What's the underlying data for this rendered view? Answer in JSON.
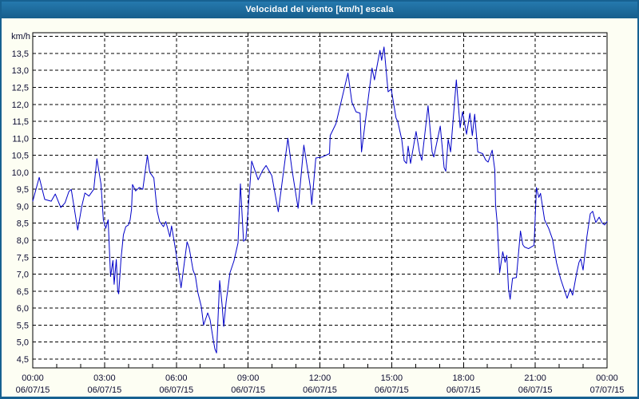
{
  "window": {
    "title": "Velocidad del viento [km/h] escala"
  },
  "colors": {
    "titlebar_top": "#2579ae",
    "titlebar_bottom": "#175e8c",
    "frame_border": "#176191",
    "panel_bg": "#fdfef3",
    "plot_bg": "#ffffff",
    "grid": "#000000",
    "line": "#0000c8",
    "label_text": "#0c0c30",
    "title_text": "#ffffff"
  },
  "chart_data": {
    "type": "line",
    "title": "Velocidad del viento [km/h] escala",
    "xlabel": "",
    "ylabel": "km/h",
    "legend": "none",
    "grid": "dashed",
    "ylim": [
      4.24,
      14.11
    ],
    "grid_step": 0.5,
    "xlim_hours": [
      0,
      24
    ],
    "minor_tick_every_hours": 1,
    "y_ticks": [
      "13,5",
      "13,0",
      "12,5",
      "12,0",
      "11,5",
      "11,0",
      "10,5",
      "10,0",
      "9,5",
      "9,0",
      "8,5",
      "8,0",
      "7,5",
      "7,0",
      "6,5",
      "6,0",
      "5,5",
      "5,0",
      "4,5"
    ],
    "x_ticks": [
      {
        "hour": 0,
        "time": "00:00",
        "date": "06/07/15"
      },
      {
        "hour": 3,
        "time": "03:00",
        "date": "06/07/15"
      },
      {
        "hour": 6,
        "time": "06:00",
        "date": "06/07/15"
      },
      {
        "hour": 9,
        "time": "09:00",
        "date": "06/07/15"
      },
      {
        "hour": 12,
        "time": "12:00",
        "date": "06/07/15"
      },
      {
        "hour": 15,
        "time": "15:00",
        "date": "06/07/15"
      },
      {
        "hour": 18,
        "time": "18:00",
        "date": "06/07/15"
      },
      {
        "hour": 21,
        "time": "21:00",
        "date": "06/07/15"
      },
      {
        "hour": 24,
        "time": "00:00",
        "date": "07/07/15"
      }
    ],
    "series": [
      {
        "name": "Velocidad del viento",
        "unit": "km/h",
        "points": [
          [
            0,
            9.15
          ],
          [
            0.27,
            9.85
          ],
          [
            0.5,
            9.2
          ],
          [
            0.77,
            9.15
          ],
          [
            0.94,
            9.36
          ],
          [
            1.17,
            8.96
          ],
          [
            1.35,
            9.1
          ],
          [
            1.51,
            9.43
          ],
          [
            1.61,
            9.5
          ],
          [
            1.88,
            8.3
          ],
          [
            2.05,
            9.0
          ],
          [
            2.18,
            9.39
          ],
          [
            2.35,
            9.3
          ],
          [
            2.55,
            9.5
          ],
          [
            2.68,
            10.4
          ],
          [
            2.85,
            9.66
          ],
          [
            2.95,
            8.6
          ],
          [
            3.05,
            8.35
          ],
          [
            3.15,
            8.6
          ],
          [
            3.25,
            6.93
          ],
          [
            3.35,
            7.4
          ],
          [
            3.4,
            6.7
          ],
          [
            3.49,
            7.43
          ],
          [
            3.55,
            6.5
          ],
          [
            3.59,
            6.42
          ],
          [
            3.69,
            7.45
          ],
          [
            3.79,
            8.16
          ],
          [
            3.89,
            8.4
          ],
          [
            4.0,
            8.45
          ],
          [
            4.07,
            8.6
          ],
          [
            4.13,
            8.92
          ],
          [
            4.17,
            9.64
          ],
          [
            4.3,
            9.45
          ],
          [
            4.45,
            9.55
          ],
          [
            4.6,
            9.5
          ],
          [
            4.79,
            10.5
          ],
          [
            4.89,
            10.0
          ],
          [
            5.06,
            9.83
          ],
          [
            5.2,
            8.85
          ],
          [
            5.3,
            8.55
          ],
          [
            5.46,
            8.4
          ],
          [
            5.56,
            8.55
          ],
          [
            5.73,
            8.1
          ],
          [
            5.8,
            8.42
          ],
          [
            5.97,
            7.7
          ],
          [
            6.2,
            6.6
          ],
          [
            6.45,
            7.95
          ],
          [
            6.54,
            7.77
          ],
          [
            6.7,
            7.12
          ],
          [
            6.8,
            6.93
          ],
          [
            6.9,
            6.46
          ],
          [
            7.04,
            6.06
          ],
          [
            7.14,
            5.5
          ],
          [
            7.31,
            5.86
          ],
          [
            7.41,
            5.66
          ],
          [
            7.54,
            5.08
          ],
          [
            7.61,
            4.8
          ],
          [
            7.68,
            4.68
          ],
          [
            7.81,
            6.81
          ],
          [
            7.91,
            6.11
          ],
          [
            7.98,
            5.46
          ],
          [
            8.08,
            6.18
          ],
          [
            8.24,
            7.04
          ],
          [
            8.41,
            7.39
          ],
          [
            8.58,
            7.92
          ],
          [
            8.68,
            9.66
          ],
          [
            8.81,
            7.97
          ],
          [
            8.91,
            8.04
          ],
          [
            9.15,
            10.33
          ],
          [
            9.42,
            9.78
          ],
          [
            9.6,
            10.05
          ],
          [
            9.75,
            10.2
          ],
          [
            9.99,
            9.9
          ],
          [
            10.26,
            8.84
          ],
          [
            10.66,
            11.0
          ],
          [
            10.83,
            10.1
          ],
          [
            11.09,
            8.94
          ],
          [
            11.33,
            10.8
          ],
          [
            11.6,
            9.57
          ],
          [
            11.66,
            9.05
          ],
          [
            11.83,
            10.42
          ],
          [
            12.1,
            10.45
          ],
          [
            12.4,
            10.55
          ],
          [
            12.43,
            11.08
          ],
          [
            12.67,
            11.43
          ],
          [
            13.17,
            12.92
          ],
          [
            13.34,
            12.06
          ],
          [
            13.51,
            11.78
          ],
          [
            13.68,
            11.74
          ],
          [
            13.74,
            10.6
          ],
          [
            14.18,
            13.07
          ],
          [
            14.28,
            12.72
          ],
          [
            14.51,
            13.59
          ],
          [
            14.58,
            13.3
          ],
          [
            14.68,
            13.69
          ],
          [
            14.85,
            12.37
          ],
          [
            14.98,
            12.45
          ],
          [
            15.18,
            11.6
          ],
          [
            15.25,
            11.5
          ],
          [
            15.42,
            10.96
          ],
          [
            15.52,
            10.34
          ],
          [
            15.62,
            10.26
          ],
          [
            15.69,
            10.77
          ],
          [
            15.79,
            10.26
          ],
          [
            16.02,
            11.2
          ],
          [
            16.16,
            10.6
          ],
          [
            16.26,
            10.35
          ],
          [
            16.52,
            11.96
          ],
          [
            16.69,
            10.6
          ],
          [
            16.76,
            10.45
          ],
          [
            17.03,
            11.36
          ],
          [
            17.19,
            10.14
          ],
          [
            17.26,
            10.03
          ],
          [
            17.36,
            10.97
          ],
          [
            17.46,
            10.6
          ],
          [
            17.7,
            12.72
          ],
          [
            17.86,
            11.31
          ],
          [
            17.96,
            11.78
          ],
          [
            18.13,
            11.12
          ],
          [
            18.27,
            11.74
          ],
          [
            18.37,
            11.08
          ],
          [
            18.47,
            11.71
          ],
          [
            18.6,
            10.6
          ],
          [
            18.8,
            10.55
          ],
          [
            18.93,
            10.36
          ],
          [
            19.03,
            10.3
          ],
          [
            19.2,
            10.65
          ],
          [
            19.31,
            10.07
          ],
          [
            19.34,
            9.04
          ],
          [
            19.41,
            8.5
          ],
          [
            19.48,
            7.5
          ],
          [
            19.51,
            7.04
          ],
          [
            19.64,
            7.66
          ],
          [
            19.74,
            7.35
          ],
          [
            19.81,
            7.55
          ],
          [
            19.88,
            6.57
          ],
          [
            19.95,
            6.26
          ],
          [
            20.05,
            6.88
          ],
          [
            20.21,
            6.9
          ],
          [
            20.38,
            8.27
          ],
          [
            20.48,
            7.87
          ],
          [
            20.55,
            7.8
          ],
          [
            20.72,
            7.75
          ],
          [
            20.95,
            7.85
          ],
          [
            21.05,
            9.55
          ],
          [
            21.15,
            9.26
          ],
          [
            21.22,
            9.38
          ],
          [
            21.39,
            8.6
          ],
          [
            21.56,
            8.35
          ],
          [
            21.72,
            8.03
          ],
          [
            21.89,
            7.33
          ],
          [
            22.06,
            6.86
          ],
          [
            22.33,
            6.29
          ],
          [
            22.46,
            6.57
          ],
          [
            22.56,
            6.38
          ],
          [
            22.73,
            7.04
          ],
          [
            22.83,
            7.35
          ],
          [
            22.9,
            7.45
          ],
          [
            23.0,
            7.12
          ],
          [
            23.16,
            8.11
          ],
          [
            23.3,
            8.78
          ],
          [
            23.4,
            8.85
          ],
          [
            23.53,
            8.52
          ],
          [
            23.67,
            8.68
          ],
          [
            23.8,
            8.5
          ],
          [
            23.9,
            8.45
          ],
          [
            24.0,
            8.55
          ]
        ]
      }
    ]
  }
}
